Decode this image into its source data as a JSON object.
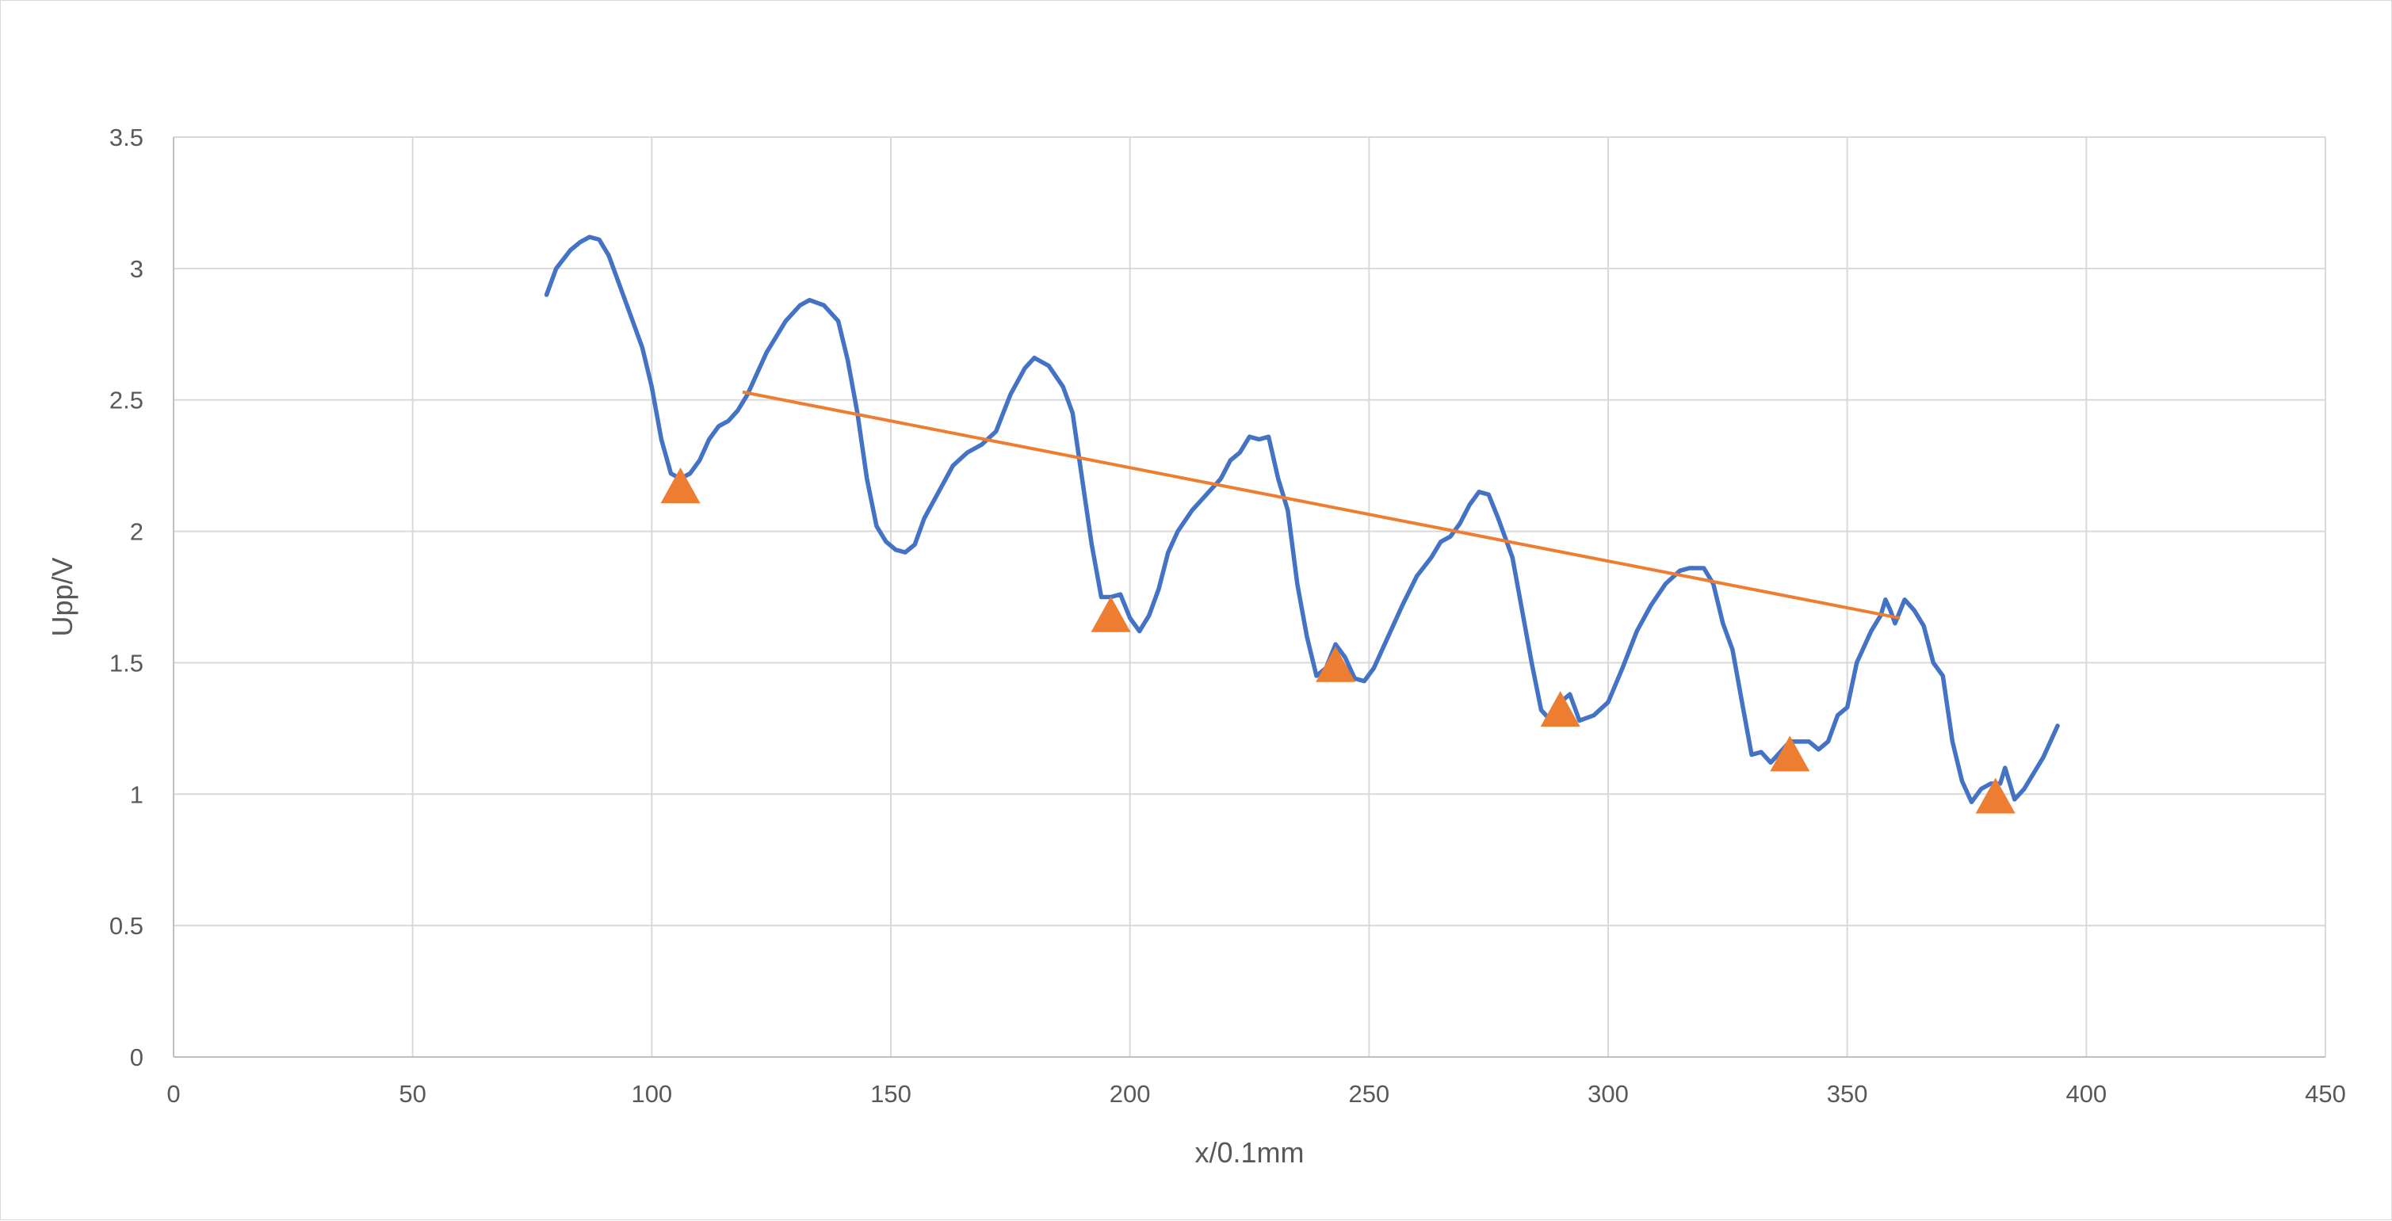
{
  "chart_data": {
    "type": "line",
    "title": "",
    "xlabel": "x/0.1mm",
    "ylabel": "Upp/V",
    "xlim": [
      0,
      450
    ],
    "ylim": [
      0,
      3.5
    ],
    "x_ticks": [
      "0",
      "50",
      "100",
      "150",
      "200",
      "250",
      "300",
      "350",
      "400",
      "450"
    ],
    "y_ticks": [
      "0",
      "0.5",
      "1",
      "1.5",
      "2",
      "2.5",
      "3",
      "3.5"
    ],
    "grid": true,
    "legend": "none",
    "colors": {
      "signal": "#4472C4",
      "markers": "#ED7D31",
      "trend": "#ED7D31",
      "grid": "#d9d9d9",
      "axis": "#bfbfbf"
    },
    "series": [
      {
        "type": "line",
        "color": "#4472C4",
        "points": [
          [
            78,
            2.9
          ],
          [
            80,
            3.0
          ],
          [
            83,
            3.07
          ],
          [
            85,
            3.1
          ],
          [
            87,
            3.12
          ],
          [
            89,
            3.11
          ],
          [
            91,
            3.05
          ],
          [
            93,
            2.95
          ],
          [
            95,
            2.85
          ],
          [
            98,
            2.7
          ],
          [
            100,
            2.55
          ],
          [
            102,
            2.35
          ],
          [
            104,
            2.22
          ],
          [
            106,
            2.2
          ],
          [
            108,
            2.22
          ],
          [
            110,
            2.27
          ],
          [
            112,
            2.35
          ],
          [
            114,
            2.4
          ],
          [
            116,
            2.42
          ],
          [
            118,
            2.46
          ],
          [
            120,
            2.52
          ],
          [
            124,
            2.68
          ],
          [
            128,
            2.8
          ],
          [
            131,
            2.86
          ],
          [
            133,
            2.88
          ],
          [
            136,
            2.86
          ],
          [
            139,
            2.8
          ],
          [
            141,
            2.65
          ],
          [
            143,
            2.45
          ],
          [
            145,
            2.2
          ],
          [
            147,
            2.02
          ],
          [
            149,
            1.96
          ],
          [
            151,
            1.93
          ],
          [
            153,
            1.92
          ],
          [
            155,
            1.95
          ],
          [
            157,
            2.05
          ],
          [
            160,
            2.15
          ],
          [
            163,
            2.25
          ],
          [
            166,
            2.3
          ],
          [
            169,
            2.33
          ],
          [
            172,
            2.38
          ],
          [
            175,
            2.52
          ],
          [
            178,
            2.62
          ],
          [
            180,
            2.66
          ],
          [
            183,
            2.63
          ],
          [
            186,
            2.55
          ],
          [
            188,
            2.45
          ],
          [
            190,
            2.2
          ],
          [
            192,
            1.95
          ],
          [
            194,
            1.75
          ],
          [
            196,
            1.75
          ],
          [
            198,
            1.76
          ],
          [
            200,
            1.67
          ],
          [
            202,
            1.62
          ],
          [
            204,
            1.68
          ],
          [
            206,
            1.78
          ],
          [
            208,
            1.92
          ],
          [
            210,
            2.0
          ],
          [
            213,
            2.08
          ],
          [
            216,
            2.14
          ],
          [
            219,
            2.2
          ],
          [
            221,
            2.27
          ],
          [
            223,
            2.3
          ],
          [
            225,
            2.36
          ],
          [
            227,
            2.35
          ],
          [
            229,
            2.36
          ],
          [
            231,
            2.2
          ],
          [
            233,
            2.08
          ],
          [
            235,
            1.8
          ],
          [
            237,
            1.6
          ],
          [
            239,
            1.45
          ],
          [
            241,
            1.48
          ],
          [
            243,
            1.57
          ],
          [
            245,
            1.52
          ],
          [
            247,
            1.44
          ],
          [
            249,
            1.43
          ],
          [
            251,
            1.48
          ],
          [
            254,
            1.6
          ],
          [
            257,
            1.72
          ],
          [
            260,
            1.83
          ],
          [
            263,
            1.9
          ],
          [
            265,
            1.96
          ],
          [
            267,
            1.98
          ],
          [
            269,
            2.03
          ],
          [
            271,
            2.1
          ],
          [
            273,
            2.15
          ],
          [
            275,
            2.14
          ],
          [
            277,
            2.05
          ],
          [
            280,
            1.9
          ],
          [
            282,
            1.7
          ],
          [
            284,
            1.5
          ],
          [
            286,
            1.32
          ],
          [
            288,
            1.28
          ],
          [
            290,
            1.35
          ],
          [
            292,
            1.38
          ],
          [
            294,
            1.28
          ],
          [
            297,
            1.3
          ],
          [
            300,
            1.35
          ],
          [
            303,
            1.48
          ],
          [
            306,
            1.62
          ],
          [
            309,
            1.72
          ],
          [
            312,
            1.8
          ],
          [
            315,
            1.85
          ],
          [
            317,
            1.86
          ],
          [
            320,
            1.86
          ],
          [
            322,
            1.8
          ],
          [
            324,
            1.65
          ],
          [
            326,
            1.55
          ],
          [
            328,
            1.35
          ],
          [
            330,
            1.15
          ],
          [
            332,
            1.16
          ],
          [
            334,
            1.12
          ],
          [
            336,
            1.16
          ],
          [
            338,
            1.2
          ],
          [
            340,
            1.2
          ],
          [
            342,
            1.2
          ],
          [
            344,
            1.17
          ],
          [
            346,
            1.2
          ],
          [
            348,
            1.3
          ],
          [
            350,
            1.33
          ],
          [
            352,
            1.5
          ],
          [
            355,
            1.62
          ],
          [
            357,
            1.68
          ],
          [
            358,
            1.74
          ],
          [
            359,
            1.7
          ],
          [
            360,
            1.65
          ],
          [
            362,
            1.74
          ],
          [
            364,
            1.7
          ],
          [
            366,
            1.64
          ],
          [
            368,
            1.5
          ],
          [
            370,
            1.45
          ],
          [
            372,
            1.2
          ],
          [
            374,
            1.05
          ],
          [
            376,
            0.97
          ],
          [
            378,
            1.02
          ],
          [
            380,
            1.04
          ],
          [
            382,
            1.04
          ],
          [
            383,
            1.1
          ],
          [
            384,
            1.04
          ],
          [
            385,
            0.98
          ],
          [
            387,
            1.02
          ],
          [
            389,
            1.08
          ],
          [
            391,
            1.14
          ],
          [
            394,
            1.26
          ]
        ]
      },
      {
        "type": "markers",
        "marker": "triangle",
        "color": "#ED7D31",
        "points": [
          [
            106,
            2.17
          ],
          [
            196,
            1.68
          ],
          [
            243,
            1.49
          ],
          [
            290,
            1.32
          ],
          [
            338,
            1.15
          ],
          [
            381,
            0.99
          ]
        ]
      },
      {
        "type": "trendline",
        "color": "#ED7D31",
        "points": [
          [
            119,
            2.53
          ],
          [
            361,
            1.67
          ]
        ]
      }
    ]
  }
}
